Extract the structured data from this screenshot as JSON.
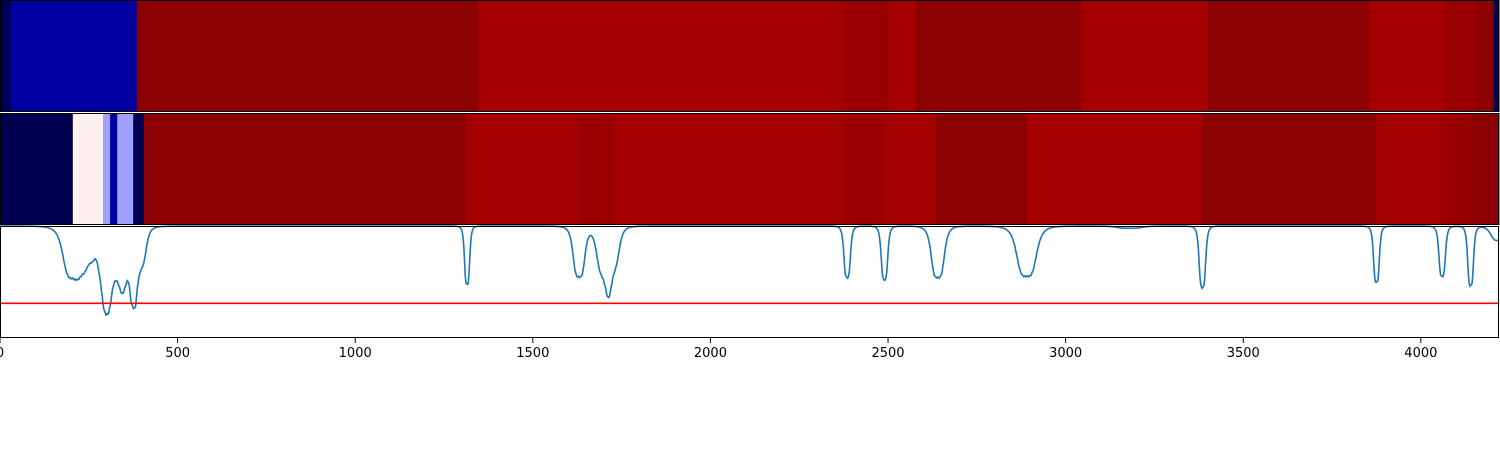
{
  "chart_data": [
    {
      "type": "heatmap",
      "row": "top",
      "segments": [
        {
          "x0": 0,
          "x1": 30,
          "color": "#000050"
        },
        {
          "x0": 30,
          "x1": 385,
          "color": "#0000a0"
        },
        {
          "x0": 385,
          "x1": 1345,
          "color": "#8b0000"
        },
        {
          "x0": 1345,
          "x1": 2380,
          "color": "#a50000"
        },
        {
          "x0": 2380,
          "x1": 2500,
          "color": "#990000"
        },
        {
          "x0": 2500,
          "x1": 2580,
          "color": "#a50000"
        },
        {
          "x0": 2580,
          "x1": 3045,
          "color": "#8b0000"
        },
        {
          "x0": 3045,
          "x1": 3400,
          "color": "#a50000"
        },
        {
          "x0": 3400,
          "x1": 3855,
          "color": "#8b0000"
        },
        {
          "x0": 3855,
          "x1": 4070,
          "color": "#a50000"
        },
        {
          "x0": 4070,
          "x1": 4155,
          "color": "#990000"
        },
        {
          "x0": 4155,
          "x1": 4205,
          "color": "#8b0000"
        },
        {
          "x0": 4205,
          "x1": 4220,
          "color": "#000050"
        }
      ]
    },
    {
      "type": "heatmap",
      "row": "middle",
      "segments": [
        {
          "x0": 0,
          "x1": 205,
          "color": "#000050"
        },
        {
          "x0": 205,
          "x1": 290,
          "color": "#fff0f0"
        },
        {
          "x0": 290,
          "x1": 310,
          "color": "#a0a0ff"
        },
        {
          "x0": 310,
          "x1": 330,
          "color": "#0000a0"
        },
        {
          "x0": 330,
          "x1": 375,
          "color": "#a0a0ff"
        },
        {
          "x0": 375,
          "x1": 405,
          "color": "#000050"
        },
        {
          "x0": 405,
          "x1": 1310,
          "color": "#8b0000"
        },
        {
          "x0": 1310,
          "x1": 1625,
          "color": "#a50000"
        },
        {
          "x0": 1625,
          "x1": 1690,
          "color": "#990000"
        },
        {
          "x0": 1690,
          "x1": 1705,
          "color": "#a50000"
        },
        {
          "x0": 1705,
          "x1": 1720,
          "color": "#990000"
        },
        {
          "x0": 1720,
          "x1": 2380,
          "color": "#a50000"
        },
        {
          "x0": 2380,
          "x1": 2485,
          "color": "#990000"
        },
        {
          "x0": 2485,
          "x1": 2635,
          "color": "#a50000"
        },
        {
          "x0": 2635,
          "x1": 2890,
          "color": "#8b0000"
        },
        {
          "x0": 2890,
          "x1": 3385,
          "color": "#a50000"
        },
        {
          "x0": 3385,
          "x1": 3875,
          "color": "#8b0000"
        },
        {
          "x0": 3875,
          "x1": 4060,
          "color": "#a50000"
        },
        {
          "x0": 4060,
          "x1": 4140,
          "color": "#990000"
        },
        {
          "x0": 4140,
          "x1": 4220,
          "color": "#8b0000"
        }
      ]
    },
    {
      "type": "line",
      "row": "bottom",
      "xlim": [
        0,
        4220
      ],
      "ylim": [
        0,
        1
      ],
      "line_color": "#1f77b4",
      "threshold": {
        "y": 0.31,
        "color": "#ff0000"
      },
      "baseline": 1.0,
      "dips": [
        {
          "center": 205,
          "depth": 0.46,
          "width": 30
        },
        {
          "center": 250,
          "depth": 0.25,
          "width": 20
        },
        {
          "center": 290,
          "depth": 0.3,
          "width": 18
        },
        {
          "center": 300,
          "depth": 0.38,
          "width": 15
        },
        {
          "center": 330,
          "depth": 0.36,
          "width": 25
        },
        {
          "center": 360,
          "depth": 0.3,
          "width": 25
        },
        {
          "center": 375,
          "depth": 0.3,
          "width": 10
        },
        {
          "center": 395,
          "depth": 0.32,
          "width": 18
        },
        {
          "center": 1315,
          "depth": 0.52,
          "width": 8
        },
        {
          "center": 1630,
          "depth": 0.45,
          "width": 18
        },
        {
          "center": 1700,
          "depth": 0.4,
          "width": 22
        },
        {
          "center": 1725,
          "depth": 0.32,
          "width": 20
        },
        {
          "center": 2385,
          "depth": 0.46,
          "width": 10
        },
        {
          "center": 2490,
          "depth": 0.48,
          "width": 10
        },
        {
          "center": 2640,
          "depth": 0.46,
          "width": 20
        },
        {
          "center": 2890,
          "depth": 0.45,
          "width": 30
        },
        {
          "center": 3180,
          "depth": 0.02,
          "width": 40
        },
        {
          "center": 3385,
          "depth": 0.55,
          "width": 10
        },
        {
          "center": 3875,
          "depth": 0.5,
          "width": 9
        },
        {
          "center": 4060,
          "depth": 0.45,
          "width": 10
        },
        {
          "center": 4140,
          "depth": 0.53,
          "width": 9
        },
        {
          "center": 4220,
          "depth": 0.13,
          "width": 25
        }
      ]
    }
  ],
  "x_axis": {
    "ticks": [
      0,
      500,
      1000,
      1500,
      2000,
      2500,
      3000,
      3500,
      4000
    ],
    "tick_labels": [
      "0",
      "500",
      "1000",
      "1500",
      "2000",
      "2500",
      "3000",
      "3500",
      "4000"
    ],
    "range": [
      0,
      4220
    ]
  }
}
